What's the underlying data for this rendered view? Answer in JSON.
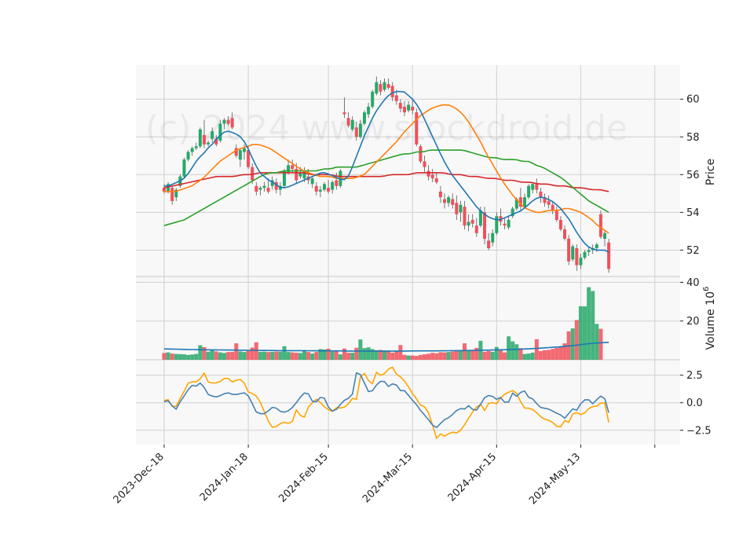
{
  "chart_data": {
    "type": "candlestick",
    "watermark": "(c) 2024 www.stockdroid.de",
    "colors": {
      "up": "#26a869",
      "down": "#f0505a",
      "sma_short": "#1f77b4",
      "sma_mid": "#ff7f0e",
      "sma_long": "#2ca02c",
      "sma_longest": "#d62728",
      "osc_1": "#ffa500",
      "osc_2": "#4682b4",
      "volume_avg": "#1f77b4",
      "grid": "#d0d0d0",
      "panel_bg": "#f8f8f8"
    },
    "x_ticks": [
      "2023-Dec-18",
      "2024-Jan-18",
      "2024-Feb-15",
      "2024-Mar-15",
      "2024-Apr-15",
      "2024-May-13"
    ],
    "x_tick_index": [
      0,
      21,
      41,
      62,
      83,
      104
    ],
    "price_panel": {
      "ylabel": "Price",
      "ylim": [
        50.6,
        61.8
      ],
      "yticks": [
        52,
        54,
        56,
        58,
        60
      ],
      "ohlc": [
        [
          55.3,
          55.5,
          55.0,
          55.1
        ],
        [
          55.1,
          55.6,
          55.0,
          55.5
        ],
        [
          55.3,
          55.4,
          54.4,
          54.6
        ],
        [
          54.8,
          55.3,
          54.6,
          55.2
        ],
        [
          55.4,
          56.0,
          55.3,
          55.9
        ],
        [
          55.9,
          56.9,
          55.8,
          56.8
        ],
        [
          56.8,
          57.3,
          56.7,
          57.2
        ],
        [
          57.2,
          57.5,
          57.0,
          57.4
        ],
        [
          57.4,
          57.7,
          57.3,
          57.5
        ],
        [
          57.5,
          58.5,
          57.4,
          58.4
        ],
        [
          58.1,
          58.9,
          57.4,
          57.6
        ],
        [
          57.6,
          57.8,
          57.5,
          57.7
        ],
        [
          57.9,
          58.5,
          57.7,
          58.3
        ],
        [
          57.9,
          58.1,
          57.5,
          57.6
        ],
        [
          57.8,
          58.9,
          57.7,
          58.7
        ],
        [
          58.7,
          59.0,
          58.4,
          58.9
        ],
        [
          58.9,
          59.1,
          58.6,
          58.7
        ],
        [
          59.0,
          59.3,
          58.4,
          58.5
        ],
        [
          57.4,
          57.6,
          56.9,
          57.0
        ],
        [
          56.8,
          57.4,
          56.4,
          57.3
        ],
        [
          57.2,
          57.6,
          56.8,
          57.4
        ],
        [
          57.3,
          57.5,
          56.3,
          56.4
        ],
        [
          56.4,
          56.6,
          55.5,
          55.7
        ],
        [
          55.4,
          55.6,
          54.9,
          55.1
        ],
        [
          55.2,
          55.4,
          54.9,
          55.3
        ],
        [
          55.3,
          55.6,
          55.1,
          55.4
        ],
        [
          55.3,
          55.8,
          55.0,
          55.1
        ],
        [
          55.4,
          55.9,
          55.2,
          55.7
        ],
        [
          55.6,
          55.8,
          55.0,
          55.2
        ],
        [
          55.2,
          55.6,
          54.9,
          55.4
        ],
        [
          55.4,
          56.3,
          55.3,
          56.2
        ],
        [
          56.1,
          56.8,
          56.0,
          56.5
        ],
        [
          56.5,
          56.8,
          56.1,
          56.3
        ],
        [
          56.3,
          56.6,
          55.5,
          55.7
        ],
        [
          55.9,
          56.4,
          55.8,
          56.1
        ],
        [
          55.8,
          56.4,
          55.6,
          56.2
        ],
        [
          55.9,
          56.3,
          55.5,
          55.7
        ],
        [
          55.5,
          55.9,
          55.3,
          55.8
        ],
        [
          55.4,
          55.6,
          54.9,
          55.1
        ],
        [
          55.1,
          55.4,
          54.8,
          55.2
        ],
        [
          55.2,
          55.6,
          55.1,
          55.5
        ],
        [
          55.3,
          55.7,
          55.0,
          55.1
        ],
        [
          55.2,
          55.7,
          55.0,
          55.6
        ],
        [
          55.7,
          56.1,
          55.2,
          55.4
        ],
        [
          55.4,
          56.3,
          55.3,
          56.2
        ],
        [
          59.3,
          60.1,
          59.0,
          59.2
        ],
        [
          59.0,
          59.3,
          58.5,
          58.6
        ],
        [
          58.4,
          59.1,
          58.3,
          58.9
        ],
        [
          58.5,
          58.8,
          57.8,
          58.0
        ],
        [
          58.0,
          58.9,
          57.9,
          58.7
        ],
        [
          58.7,
          59.4,
          58.6,
          59.3
        ],
        [
          59.2,
          59.8,
          59.0,
          59.6
        ],
        [
          59.6,
          60.5,
          59.5,
          60.4
        ],
        [
          60.3,
          61.2,
          60.2,
          60.9
        ],
        [
          60.8,
          61.0,
          60.2,
          60.4
        ],
        [
          60.5,
          61.1,
          60.4,
          60.9
        ],
        [
          60.8,
          61.1,
          60.5,
          60.6
        ],
        [
          60.7,
          60.9,
          59.9,
          60.1
        ],
        [
          60.2,
          60.5,
          59.7,
          59.9
        ],
        [
          59.8,
          60.0,
          59.3,
          59.5
        ],
        [
          59.6,
          59.9,
          59.1,
          59.3
        ],
        [
          59.4,
          59.9,
          59.3,
          59.7
        ],
        [
          59.6,
          60.0,
          59.2,
          59.4
        ],
        [
          59.3,
          59.5,
          57.5,
          57.6
        ],
        [
          57.5,
          57.6,
          56.6,
          56.7
        ],
        [
          56.7,
          57.0,
          56.1,
          56.4
        ],
        [
          56.2,
          56.5,
          55.7,
          55.9
        ],
        [
          56.0,
          56.3,
          55.6,
          55.8
        ],
        [
          55.8,
          56.1,
          55.5,
          55.6
        ],
        [
          55.1,
          55.4,
          54.5,
          54.8
        ],
        [
          54.7,
          55.0,
          54.2,
          54.5
        ],
        [
          54.5,
          54.9,
          54.3,
          54.8
        ],
        [
          54.7,
          55.0,
          54.2,
          54.4
        ],
        [
          54.5,
          54.9,
          53.6,
          53.9
        ],
        [
          54.0,
          54.6,
          53.5,
          54.4
        ],
        [
          54.3,
          54.6,
          53.1,
          53.3
        ],
        [
          53.3,
          53.9,
          53.0,
          53.5
        ],
        [
          53.6,
          53.9,
          53.2,
          53.4
        ],
        [
          53.3,
          53.7,
          52.7,
          52.9
        ],
        [
          53.3,
          54.3,
          53.2,
          54.1
        ],
        [
          54.0,
          54.3,
          52.3,
          52.6
        ],
        [
          52.5,
          52.9,
          52.0,
          52.1
        ],
        [
          52.4,
          53.1,
          52.2,
          52.9
        ],
        [
          52.9,
          54.0,
          52.8,
          53.8
        ],
        [
          53.8,
          54.2,
          53.3,
          53.5
        ],
        [
          53.4,
          53.7,
          53.1,
          53.3
        ],
        [
          53.2,
          53.8,
          53.1,
          53.6
        ],
        [
          53.8,
          54.3,
          53.7,
          54.2
        ],
        [
          54.2,
          54.8,
          54.1,
          54.7
        ],
        [
          54.8,
          55.3,
          54.1,
          54.3
        ],
        [
          54.3,
          55.0,
          54.2,
          54.8
        ],
        [
          54.8,
          55.5,
          54.7,
          55.4
        ],
        [
          55.2,
          55.6,
          55.0,
          55.5
        ],
        [
          55.5,
          55.8,
          55.0,
          55.2
        ],
        [
          55.1,
          55.3,
          54.5,
          54.8
        ],
        [
          54.8,
          55.0,
          54.3,
          54.5
        ],
        [
          54.6,
          54.9,
          54.2,
          54.4
        ],
        [
          54.4,
          54.6,
          53.9,
          54.1
        ],
        [
          54.1,
          54.3,
          53.5,
          53.6
        ],
        [
          53.6,
          53.8,
          53.0,
          53.1
        ],
        [
          53.1,
          53.3,
          52.5,
          52.6
        ],
        [
          52.6,
          52.8,
          51.2,
          51.4
        ],
        [
          51.5,
          52.3,
          51.4,
          52.2
        ],
        [
          52.1,
          52.3,
          50.9,
          51.2
        ],
        [
          51.2,
          51.8,
          51.0,
          51.6
        ],
        [
          51.6,
          52.0,
          51.5,
          51.9
        ],
        [
          51.9,
          52.2,
          51.7,
          52.0
        ],
        [
          52.0,
          52.3,
          51.8,
          52.1
        ],
        [
          52.1,
          52.4,
          51.9,
          52.3
        ],
        [
          53.9,
          54.1,
          52.6,
          52.7
        ],
        [
          52.6,
          53.0,
          52.2,
          52.9
        ],
        [
          52.4,
          52.6,
          50.8,
          51.0
        ]
      ],
      "sma_short": [
        55.4,
        55.4,
        55.5,
        55.6,
        55.7,
        55.9,
        56.2,
        56.6,
        56.9,
        57.1,
        57.4,
        57.6,
        57.9,
        58.1,
        58.3,
        58.3,
        58.2,
        58.1,
        57.9,
        57.5,
        57.0,
        56.5,
        56.1,
        55.9,
        55.7,
        55.6,
        55.4,
        55.3,
        55.3,
        55.4,
        55.5,
        55.6,
        55.7,
        55.8,
        55.9,
        56.0,
        56.1,
        56.1,
        56.0,
        55.9,
        55.8,
        55.7,
        55.8,
        56.3,
        56.9,
        57.5,
        58.1,
        58.6,
        59.1,
        59.5,
        59.8,
        60.1,
        60.3,
        60.4,
        60.4,
        60.4,
        60.2,
        60.0,
        59.7,
        59.3,
        58.8,
        58.3,
        57.8,
        57.3,
        56.8,
        56.4,
        56.0,
        55.7,
        55.4,
        55.1,
        54.8,
        54.5,
        54.2,
        54.0,
        53.8,
        53.7,
        53.6,
        53.6,
        53.7,
        53.8,
        53.9,
        54.0,
        54.1,
        54.3,
        54.5,
        54.7,
        54.8,
        54.8,
        54.7,
        54.6,
        54.4,
        54.2,
        53.9,
        53.6,
        53.2,
        52.8,
        52.5,
        52.2,
        52.1,
        52.0,
        52.0,
        52.0,
        51.9
      ],
      "sma_mid": [
        55.1,
        55.1,
        55.1,
        55.2,
        55.3,
        55.4,
        55.6,
        55.8,
        56.1,
        56.4,
        56.7,
        56.9,
        57.1,
        57.3,
        57.4,
        57.5,
        57.6,
        57.6,
        57.5,
        57.4,
        57.2,
        57.0,
        56.8,
        56.6,
        56.4,
        56.2,
        56.1,
        56.0,
        55.9,
        55.9,
        55.9,
        55.8,
        55.8,
        55.8,
        55.8,
        55.9,
        56.0,
        56.3,
        56.6,
        56.9,
        57.2,
        57.5,
        57.8,
        58.2,
        58.5,
        58.8,
        59.1,
        59.3,
        59.5,
        59.6,
        59.7,
        59.7,
        59.6,
        59.4,
        59.1,
        58.7,
        58.2,
        57.7,
        57.1,
        56.6,
        56.1,
        55.6,
        55.2,
        54.8,
        54.5,
        54.2,
        54.1,
        54.0,
        54.0,
        54.1,
        54.1,
        54.1,
        54.2,
        54.2,
        54.1,
        54.0,
        53.8,
        53.6,
        53.3,
        53.1,
        52.9
      ],
      "sma_long": [
        53.3,
        53.4,
        53.5,
        53.6,
        53.8,
        54.0,
        54.2,
        54.4,
        54.6,
        54.8,
        55.0,
        55.2,
        55.4,
        55.6,
        55.8,
        56.0,
        56.1,
        56.1,
        56.2,
        56.2,
        56.2,
        56.2,
        56.2,
        56.2,
        56.3,
        56.3,
        56.4,
        56.4,
        56.4,
        56.4,
        56.5,
        56.6,
        56.7,
        56.8,
        56.9,
        57.0,
        57.1,
        57.1,
        57.2,
        57.2,
        57.3,
        57.3,
        57.3,
        57.3,
        57.3,
        57.3,
        57.2,
        57.1,
        57.0,
        56.9,
        56.9,
        56.8,
        56.8,
        56.8,
        56.7,
        56.7,
        56.5,
        56.4,
        56.2,
        56.0,
        55.8,
        55.5,
        55.2,
        54.9,
        54.6,
        54.4,
        54.2,
        54.0
      ],
      "sma_longest": [
        55.3,
        55.4,
        55.5,
        55.6,
        55.7,
        55.8,
        55.9,
        55.9,
        55.9,
        56.0,
        56.0,
        56.1,
        56.1,
        56.1,
        56.1,
        56.1,
        56.1,
        56.0,
        56.0,
        56.0,
        55.9,
        55.9,
        55.9,
        55.9,
        55.9,
        55.9,
        56.0,
        56.0,
        56.0,
        56.1,
        56.1,
        56.1,
        56.1,
        56.0,
        56.0,
        55.9,
        55.9,
        55.8,
        55.8,
        55.7,
        55.7,
        55.6,
        55.6,
        55.5,
        55.5,
        55.4,
        55.4,
        55.3,
        55.3,
        55.2,
        55.2,
        55.1
      ]
    },
    "volume_panel": {
      "ylabel": "Volume  10^6",
      "ylim": [
        0,
        43
      ],
      "yticks": [
        20,
        40
      ],
      "values": [
        3.5,
        3.8,
        3.2,
        3.0,
        2.9,
        2.8,
        2.5,
        2.7,
        3.0,
        7.5,
        6.5,
        4.2,
        5.0,
        4.3,
        3.8,
        3.5,
        4.0,
        4.1,
        8.5,
        4.3,
        4.0,
        4.5,
        6.3,
        9.0,
        4.1,
        4.2,
        4.0,
        4.1,
        4.2,
        4.1,
        7.0,
        4.0,
        3.8,
        3.6,
        3.5,
        5.0,
        4.0,
        3.2,
        4.0,
        5.5,
        5.3,
        5.7,
        4.2,
        4.3,
        2.8,
        5.8,
        3.6,
        3.6,
        6.2,
        10.5,
        6.0,
        6.4,
        5.5,
        4.9,
        5.1,
        4.8,
        4.5,
        3.6,
        4.6,
        7.6,
        2.5,
        2.2,
        2.2,
        2.0,
        2.5,
        2.8,
        3.1,
        3.6,
        3.3,
        3.9,
        3.8,
        4.0,
        4.2,
        4.4,
        4.7,
        8.5,
        4.6,
        4.9,
        6.1,
        9.8,
        4.1,
        4.5,
        4.1,
        6.6,
        5.1,
        3.8,
        12.1,
        9.5,
        8.0,
        6.0,
        3.0,
        3.2,
        3.7,
        10.6,
        4.5,
        4.9,
        5.1,
        5.6,
        6.1,
        6.6,
        8.5,
        14.7,
        16.2,
        20.5,
        27.6,
        27.6,
        37.5,
        35.5,
        18.5,
        16.0
      ],
      "avg": [
        5.6,
        5.4,
        5.2,
        5.1,
        5.0,
        4.9,
        4.8,
        4.7,
        4.7,
        4.6,
        4.6,
        4.5,
        4.5,
        4.5,
        4.5,
        4.6,
        4.6,
        4.7,
        4.8,
        5.0,
        5.2,
        5.5,
        6.0,
        6.6,
        7.4,
        8.5,
        9.0
      ]
    },
    "oscillator_panel": {
      "ylim": [
        -3.8,
        3.9
      ],
      "yticks": [
        -2.5,
        0.0,
        2.5
      ],
      "ytick_labels": [
        "−2.5",
        "0.0",
        "2.5"
      ],
      "line_1": [
        0.2,
        0.3,
        -0.7,
        0.2,
        1.0,
        1.9,
        1.9,
        1.9,
        2.8,
        1.8,
        1.8,
        1.8,
        2.2,
        2.2,
        1.8,
        2.2,
        2.0,
        1.0,
        0.8,
        0.5,
        -0.5,
        -1.6,
        -2.3,
        -2.1,
        -1.7,
        -1.9,
        -1.7,
        -0.3,
        -1.8,
        -0.5,
        0.0,
        0.4,
        -0.2,
        -0.6,
        -0.8,
        -0.4,
        -0.5,
        -0.3,
        0.4,
        0.3,
        3.1,
        2.3,
        1.5,
        2.8,
        2.4,
        2.8,
        3.4,
        2.6,
        2.3,
        1.8,
        1.0,
        0.4,
        -0.3,
        -0.4,
        -1.4,
        -3.3,
        -2.8,
        -3.1,
        -2.6,
        -2.8,
        -2.5,
        -1.9,
        -1.1,
        -0.5,
        -0.1,
        -0.8,
        0.3,
        -0.3,
        0.4,
        0.8,
        1.0,
        1.2,
        0.2,
        -0.5,
        -0.5,
        -0.7,
        -1.2,
        -1.5,
        -1.6,
        -1.9,
        -2.4,
        -1.6,
        -1.8,
        -0.7,
        -1.1,
        -1.0,
        -0.5,
        -0.3,
        -0.3,
        0.4,
        -1.8
      ],
      "line_2": [
        0.1,
        0.2,
        -0.8,
        0.1,
        0.8,
        1.6,
        1.5,
        1.9,
        0.8,
        0.6,
        0.5,
        0.8,
        0.9,
        0.7,
        0.8,
        0.9,
        0.5,
        -0.8,
        -1.0,
        -1.0,
        -0.4,
        -0.5,
        -0.9,
        -0.8,
        -0.4,
        0.2,
        0.9,
        0.8,
        -0.2,
        0.5,
        0.4,
        -0.8,
        -0.7,
        -0.1,
        0.4,
        0.4,
        3.0,
        2.3,
        1.0,
        1.1,
        1.9,
        2.0,
        1.4,
        1.9,
        1.1,
        1.1,
        0.4,
        -0.1,
        -0.8,
        -1.3,
        -2.0,
        -2.3,
        -1.6,
        -1.4,
        -1.0,
        -0.5,
        -0.6,
        -0.2,
        -0.9,
        -0.2,
        0.6,
        0.7,
        0.3,
        0.5,
        -0.3,
        0.9,
        0.5,
        1.3,
        0.5,
        0.3,
        -0.4,
        -0.5,
        -0.6,
        -0.9,
        -1.1,
        -1.5,
        -0.5,
        -0.7,
        0.1,
        0.4,
        -0.1,
        0.4,
        0.8,
        -0.9
      ]
    }
  }
}
